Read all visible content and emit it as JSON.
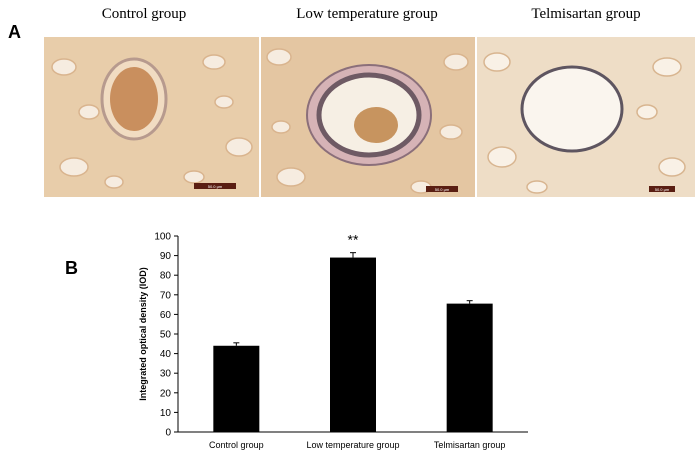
{
  "panel_a": {
    "label": "A",
    "images": [
      {
        "title": "Control group",
        "scale_bar": "50.0 μm"
      },
      {
        "title": "Low temperature group",
        "scale_bar": "50.0 μm"
      },
      {
        "title": "Telmisartan group",
        "scale_bar": "50.0 μm"
      }
    ]
  },
  "panel_b": {
    "label": "B"
  },
  "colors": {
    "bar": "#000000",
    "tissue": "#e2bd96",
    "background": "#f3e6d6"
  },
  "chart_data": {
    "type": "bar",
    "categories": [
      "Control group",
      "Low temperature group",
      "Telmisartan group"
    ],
    "values": [
      44,
      89,
      65.5
    ],
    "errors": [
      1.5,
      2.5,
      1.5
    ],
    "annotations": [
      {
        "category": "Low temperature group",
        "text": "**"
      }
    ],
    "ylabel": "Integrated optical density (IOD)",
    "xlabel": "",
    "ylim": [
      0,
      100
    ],
    "yticks": [
      0,
      10,
      20,
      30,
      40,
      50,
      60,
      70,
      80,
      90,
      100
    ],
    "grid": false
  }
}
